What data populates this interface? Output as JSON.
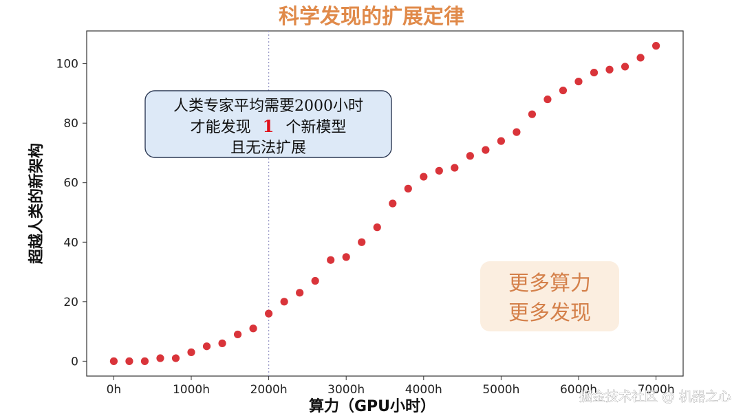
{
  "chart_data": {
    "type": "scatter",
    "title": "科学发现的扩展定律",
    "xlabel": "算力（GPU小时）",
    "ylabel": "超越人类的新架构",
    "xlim": [
      -350,
      7350
    ],
    "ylim": [
      -5,
      111
    ],
    "x_ticks": [
      0,
      1000,
      2000,
      3000,
      4000,
      5000,
      6000,
      7000
    ],
    "x_tick_labels": [
      "0h",
      "1000h",
      "2000h",
      "3000h",
      "4000h",
      "5000h",
      "6000h",
      "7000h"
    ],
    "y_ticks": [
      0,
      20,
      40,
      60,
      80,
      100
    ],
    "y_tick_labels": [
      "0",
      "20",
      "40",
      "60",
      "80",
      "100"
    ],
    "marker_color": "#d9343a",
    "reference_line_x": 2000,
    "series": [
      {
        "name": "points",
        "x": [
          0,
          200,
          400,
          600,
          800,
          1000,
          1200,
          1400,
          1600,
          1800,
          2000,
          2200,
          2400,
          2600,
          2800,
          3000,
          3200,
          3400,
          3600,
          3800,
          4000,
          4200,
          4400,
          4600,
          4800,
          5000,
          5200,
          5400,
          5600,
          5800,
          6000,
          6200,
          6400,
          6600,
          6800,
          7000
        ],
        "y": [
          0,
          0,
          0,
          1,
          1,
          3,
          5,
          6,
          9,
          11,
          16,
          20,
          23,
          27,
          34,
          35,
          40,
          45,
          53,
          58,
          62,
          64,
          65,
          69,
          71,
          74,
          77,
          83,
          88,
          91,
          94,
          97,
          98,
          99,
          102,
          106
        ]
      }
    ],
    "annotations": {
      "box1_line1": "人类专家平均需要2000小时",
      "box1_line2_prefix": "才能发现",
      "box1_line2_number": "1",
      "box1_line2_suffix": "个新模型",
      "box1_line3": "且无法扩展",
      "box2_line1": "更多算力",
      "box2_line2": "更多发现"
    }
  },
  "watermark": "掘金技术社区 @ 机器之心"
}
